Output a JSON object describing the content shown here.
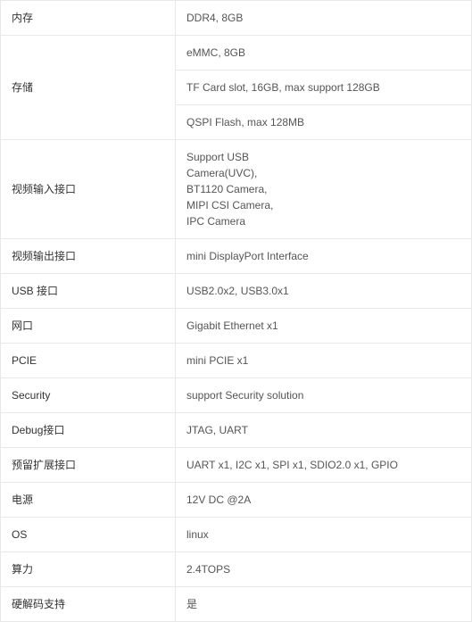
{
  "table": {
    "border_color": "#e8e8e8",
    "label_color": "#333333",
    "value_color": "#555555",
    "font_size": 12,
    "label_width": 196,
    "rows": [
      {
        "label": "内存",
        "value": "DDR4, 8GB",
        "rowspan": 1
      },
      {
        "label": "存储",
        "value": "eMMC, 8GB",
        "rowspan": 3
      },
      {
        "label": "",
        "value": "TF Card slot, 16GB, max support 128GB",
        "rowspan": 0
      },
      {
        "label": "",
        "value": "QSPI Flash, max 128MB",
        "rowspan": 0
      },
      {
        "label": "视频输入接口",
        "value": "Support USB\nCamera(UVC),\nBT1120 Camera,\nMIPI CSI Camera,\nIPC Camera",
        "rowspan": 1,
        "multiline": true
      },
      {
        "label": "视频输出接口",
        "value": "mini DisplayPort Interface",
        "rowspan": 1
      },
      {
        "label": "USB 接口",
        "value": "USB2.0x2, USB3.0x1",
        "rowspan": 1
      },
      {
        "label": "网口",
        "value": "Gigabit Ethernet x1",
        "rowspan": 1
      },
      {
        "label": "PCIE",
        "value": "mini PCIE x1",
        "rowspan": 1
      },
      {
        "label": "Security",
        "value": "support Security solution",
        "rowspan": 1
      },
      {
        "label": "Debug接口",
        "value": "JTAG, UART",
        "rowspan": 1
      },
      {
        "label": "预留扩展接口",
        "value": "UART x1, I2C x1, SPI x1, SDIO2.0 x1, GPIO",
        "rowspan": 1
      },
      {
        "label": "电源",
        "value": "12V DC @2A",
        "rowspan": 1
      },
      {
        "label": "OS",
        "value": "linux",
        "rowspan": 1
      },
      {
        "label": "算力",
        "value": "2.4TOPS",
        "rowspan": 1
      },
      {
        "label": "硬解码支持",
        "value": "是",
        "rowspan": 1
      }
    ]
  }
}
